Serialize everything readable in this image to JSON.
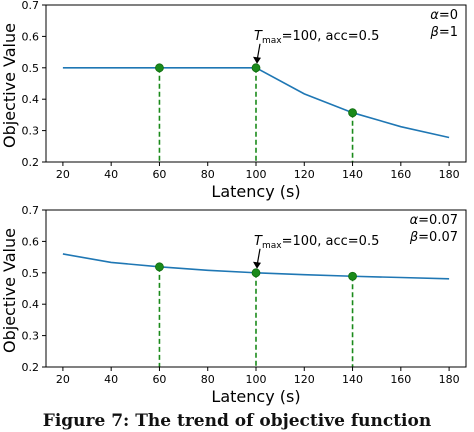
{
  "caption": "Figure 7: The trend of objective function",
  "chart_data": [
    {
      "type": "line",
      "xlabel": "Latency (s)",
      "ylabel": "Objective Value",
      "xlim": [
        13,
        187
      ],
      "ylim": [
        0.2,
        0.7
      ],
      "xticks": [
        20,
        40,
        60,
        80,
        100,
        120,
        140,
        160,
        180
      ],
      "yticks": [
        0.2,
        0.3,
        0.4,
        0.5,
        0.6,
        0.7
      ],
      "grid": false,
      "series": [
        {
          "color": "#1f77b4",
          "x": [
            20,
            40,
            60,
            80,
            100,
            120,
            140,
            160,
            180
          ],
          "y": [
            0.5,
            0.5,
            0.5,
            0.5,
            0.5,
            0.417,
            0.357,
            0.3125,
            0.278
          ]
        }
      ],
      "markers": {
        "color": "#1a8a1a",
        "x": [
          60,
          100,
          140
        ],
        "y": [
          0.5,
          0.5,
          0.357
        ]
      },
      "annotation": {
        "t_symbol": "T",
        "t_sub": "max",
        "t_rest": "=100, acc=0.5",
        "x": 100,
        "y": 0.5
      },
      "params": {
        "alpha_sym": "α",
        "alpha_val": "=0",
        "beta_sym": "β",
        "beta_val": "=1"
      }
    },
    {
      "type": "line",
      "xlabel": "Latency (s)",
      "ylabel": "Objective Value",
      "xlim": [
        13,
        187
      ],
      "ylim": [
        0.2,
        0.7
      ],
      "xticks": [
        20,
        40,
        60,
        80,
        100,
        120,
        140,
        160,
        180
      ],
      "yticks": [
        0.2,
        0.3,
        0.4,
        0.5,
        0.6,
        0.7
      ],
      "grid": false,
      "series": [
        {
          "color": "#1f77b4",
          "x": [
            20,
            40,
            60,
            80,
            100,
            120,
            140,
            160,
            180
          ],
          "y": [
            0.56,
            0.533,
            0.519,
            0.508,
            0.5,
            0.494,
            0.489,
            0.485,
            0.481
          ]
        }
      ],
      "markers": {
        "color": "#1a8a1a",
        "x": [
          60,
          100,
          140
        ],
        "y": [
          0.519,
          0.5,
          0.489
        ]
      },
      "annotation": {
        "t_symbol": "T",
        "t_sub": "max",
        "t_rest": "=100, acc=0.5",
        "x": 100,
        "y": 0.5
      },
      "params": {
        "alpha_sym": "α",
        "alpha_val": "=0.07",
        "beta_sym": "β",
        "beta_val": "=0.07"
      }
    }
  ]
}
